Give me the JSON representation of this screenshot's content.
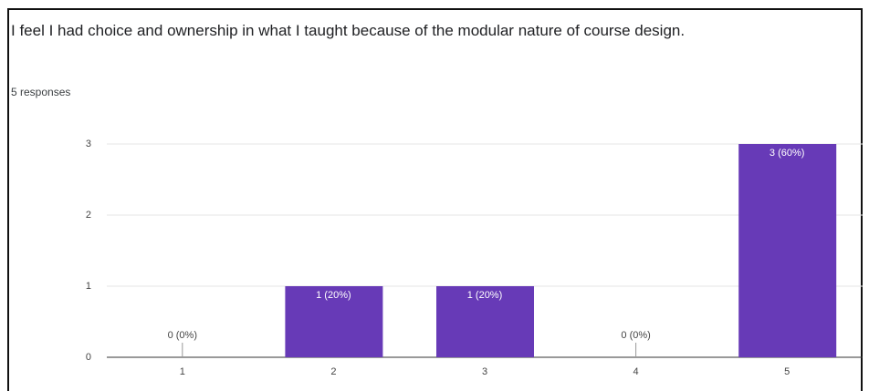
{
  "chart_data": {
    "type": "bar",
    "title": "I feel I had choice and ownership in what I taught because of the modular nature of course design.",
    "subtitle": "5 responses",
    "categories": [
      "1",
      "2",
      "3",
      "4",
      "5"
    ],
    "values": [
      0,
      1,
      1,
      0,
      3
    ],
    "value_labels": [
      "0 (0%)",
      "1 (20%)",
      "1 (20%)",
      "0 (0%)",
      "3 (60%)"
    ],
    "color": "#673ab7",
    "ylim": [
      0,
      3
    ],
    "yticks": [
      0,
      1,
      2,
      3
    ],
    "grid": true
  }
}
